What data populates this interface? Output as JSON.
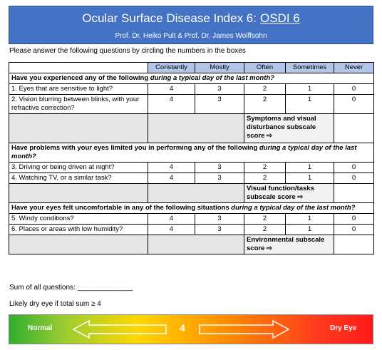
{
  "header": {
    "title": "Ocular Surface Disease Index 6:",
    "title_link": "OSDI 6",
    "subtitle": "Prof. Dr. Heiko Pult & Prof. Dr. James Wolffsohn"
  },
  "instruction": "Please answer the following questions by circling the numbers in the boxes",
  "table": {
    "columns": [
      "Constantly",
      "Mostly",
      "Often",
      "Sometimes",
      "Never"
    ],
    "sections": [
      {
        "heading": "Have you experienced any of the following",
        "heading_italic": "during a typical day of the last month?",
        "questions": [
          {
            "label": "1. Eyes that are sensitive to light?",
            "scores": [
              4,
              3,
              2,
              1,
              0
            ]
          },
          {
            "label": "2. Vision blurring between blinks, with your refractive correction?",
            "scores": [
              4,
              3,
              2,
              1,
              0
            ]
          }
        ],
        "subscale": "Symptoms and visual disturbance subscale score ⇨"
      },
      {
        "heading": "Have problems with your eyes limited you in performing any of the following",
        "heading_italic": "during a typical day of the last month?",
        "questions": [
          {
            "label": "3. Driving or being driven at night?",
            "scores": [
              4,
              3,
              2,
              1,
              0
            ]
          },
          {
            "label": "4. Watching TV, or a similar task?",
            "scores": [
              4,
              3,
              2,
              1,
              0
            ]
          }
        ],
        "subscale": "Visual function/tasks subscale score ⇨"
      },
      {
        "heading": "Have your eyes felt uncomfortable in any of the following situations",
        "heading_italic": "during a typical day of the last month?",
        "questions": [
          {
            "label": "5. Windy conditions?",
            "scores": [
              4,
              3,
              2,
              1,
              0
            ]
          },
          {
            "label": "6. Places or areas with low humidity?",
            "scores": [
              4,
              3,
              2,
              1,
              0
            ]
          }
        ],
        "subscale": "Environmental subscale score ⇨"
      }
    ]
  },
  "sum_label": "Sum of all questions: ______________",
  "threshold_note": "Likely dry eye if total sum ≥ 4",
  "scale": {
    "left": "Normal",
    "value": 4,
    "right": "Dry Eye"
  }
}
